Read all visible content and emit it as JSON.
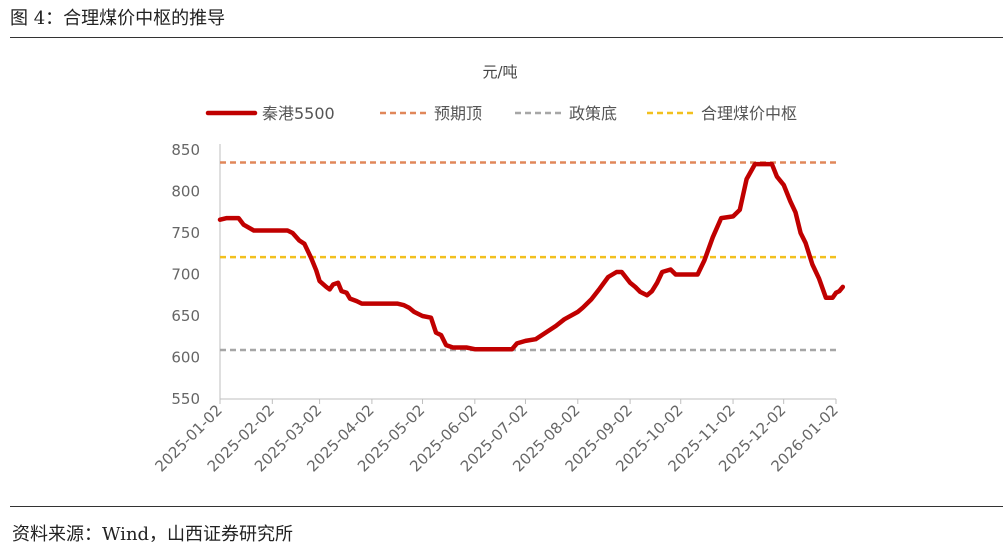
{
  "figure": {
    "title": "图 4：合理煤价中枢的推导",
    "source": "资料来源：Wind，山西证券研究所"
  },
  "chart_data": {
    "type": "line",
    "unit_label": "元/吨",
    "ylim": [
      550,
      850
    ],
    "y_ticks": [
      550,
      600,
      650,
      700,
      750,
      800,
      850
    ],
    "x_ticks": [
      "2025-01-02",
      "2025-02-02",
      "2025-03-02",
      "2025-04-02",
      "2025-05-02",
      "2025-06-02",
      "2025-07-02",
      "2025-08-02",
      "2025-09-02",
      "2025-10-02",
      "2025-11-02",
      "2025-12-02",
      "2026-01-02"
    ],
    "grid": false,
    "legend_position": "top",
    "series": [
      {
        "name": "秦港5500",
        "color": "#C00000",
        "points": [
          [
            "2025-01-02",
            766
          ],
          [
            "2025-01-06",
            768
          ],
          [
            "2025-01-13",
            768
          ],
          [
            "2025-01-16",
            760
          ],
          [
            "2025-01-22",
            753
          ],
          [
            "2025-02-04",
            753
          ],
          [
            "2025-02-11",
            753
          ],
          [
            "2025-02-14",
            750
          ],
          [
            "2025-02-18",
            741
          ],
          [
            "2025-02-21",
            737
          ],
          [
            "2025-02-25",
            720
          ],
          [
            "2025-02-28",
            705
          ],
          [
            "2025-03-02",
            692
          ],
          [
            "2025-03-06",
            685
          ],
          [
            "2025-03-08",
            682
          ],
          [
            "2025-03-10",
            688
          ],
          [
            "2025-03-13",
            690
          ],
          [
            "2025-03-15",
            680
          ],
          [
            "2025-03-18",
            678
          ],
          [
            "2025-03-20",
            671
          ],
          [
            "2025-03-24",
            668
          ],
          [
            "2025-03-27",
            665
          ],
          [
            "2025-04-02",
            665
          ],
          [
            "2025-04-10",
            665
          ],
          [
            "2025-04-17",
            665
          ],
          [
            "2025-04-21",
            663
          ],
          [
            "2025-04-24",
            660
          ],
          [
            "2025-04-27",
            655
          ],
          [
            "2025-05-02",
            650
          ],
          [
            "2025-05-07",
            648
          ],
          [
            "2025-05-10",
            630
          ],
          [
            "2025-05-13",
            627
          ],
          [
            "2025-05-16",
            615
          ],
          [
            "2025-05-20",
            612
          ],
          [
            "2025-05-28",
            612
          ],
          [
            "2025-06-02",
            610
          ],
          [
            "2025-06-15",
            610
          ],
          [
            "2025-06-24",
            610
          ],
          [
            "2025-06-27",
            617
          ],
          [
            "2025-07-02",
            620
          ],
          [
            "2025-07-08",
            622
          ],
          [
            "2025-07-14",
            630
          ],
          [
            "2025-07-20",
            638
          ],
          [
            "2025-07-25",
            646
          ],
          [
            "2025-08-02",
            655
          ],
          [
            "2025-08-05",
            660
          ],
          [
            "2025-08-10",
            670
          ],
          [
            "2025-08-15",
            683
          ],
          [
            "2025-08-20",
            697
          ],
          [
            "2025-08-25",
            703
          ],
          [
            "2025-08-28",
            703
          ],
          [
            "2025-09-02",
            690
          ],
          [
            "2025-09-05",
            685
          ],
          [
            "2025-09-08",
            679
          ],
          [
            "2025-09-12",
            675
          ],
          [
            "2025-09-15",
            680
          ],
          [
            "2025-09-18",
            690
          ],
          [
            "2025-09-21",
            703
          ],
          [
            "2025-09-26",
            706
          ],
          [
            "2025-09-29",
            700
          ],
          [
            "2025-10-02",
            700
          ],
          [
            "2025-10-08",
            700
          ],
          [
            "2025-10-12",
            700
          ],
          [
            "2025-10-16",
            717
          ],
          [
            "2025-10-21",
            745
          ],
          [
            "2025-10-26",
            768
          ],
          [
            "2025-11-02",
            770
          ],
          [
            "2025-11-06",
            778
          ],
          [
            "2025-11-10",
            815
          ],
          [
            "2025-11-15",
            833
          ],
          [
            "2025-11-25",
            833
          ],
          [
            "2025-11-28",
            818
          ],
          [
            "2025-12-02",
            808
          ],
          [
            "2025-12-06",
            788
          ],
          [
            "2025-12-09",
            775
          ],
          [
            "2025-12-12",
            750
          ],
          [
            "2025-12-15",
            738
          ],
          [
            "2025-12-19",
            712
          ],
          [
            "2025-12-23",
            695
          ],
          [
            "2025-12-27",
            672
          ],
          [
            "2025-12-31",
            672
          ],
          [
            "2026-01-02",
            678
          ],
          [
            "2026-01-04",
            680
          ],
          [
            "2026-01-06",
            685
          ]
        ]
      },
      {
        "name": "预期顶",
        "color": "#E0875A",
        "dashed": true,
        "value": 835
      },
      {
        "name": "政策底",
        "color": "#A6A6A6",
        "dashed": true,
        "value": 609
      },
      {
        "name": "合理煤价中枢",
        "color": "#F2C01E",
        "dashed": true,
        "value": 721
      }
    ]
  }
}
